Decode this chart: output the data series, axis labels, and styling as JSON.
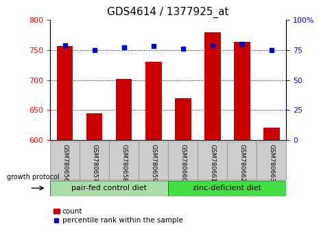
{
  "title": "GDS4614 / 1377925_at",
  "samples": [
    "GSM780656",
    "GSM780657",
    "GSM780658",
    "GSM780659",
    "GSM780660",
    "GSM780661",
    "GSM780662",
    "GSM780663"
  ],
  "counts": [
    757,
    645,
    702,
    730,
    670,
    779,
    763,
    621
  ],
  "percentile_ranks": [
    79,
    75,
    77,
    78,
    76,
    79,
    80,
    75
  ],
  "ylim_left": [
    600,
    800
  ],
  "ylim_right": [
    0,
    100
  ],
  "yticks_left": [
    600,
    650,
    700,
    750,
    800
  ],
  "yticks_right": [
    0,
    25,
    50,
    75,
    100
  ],
  "ytick_labels_right": [
    "0",
    "25",
    "50",
    "75",
    "100%"
  ],
  "bar_color": "#cc0000",
  "dot_color": "#0000cc",
  "group1_label": "pair-fed control diet",
  "group2_label": "zinc-deficient diet",
  "group1_color": "#aaddaa",
  "group2_color": "#44dd44",
  "xticklabel_bg": "#cccccc",
  "protocol_label": "growth protocol",
  "legend_count_label": "count",
  "legend_pct_label": "percentile rank within the sample",
  "title_fontsize": 11,
  "tick_fontsize": 8,
  "label_fontsize": 8,
  "group_fontsize": 8
}
